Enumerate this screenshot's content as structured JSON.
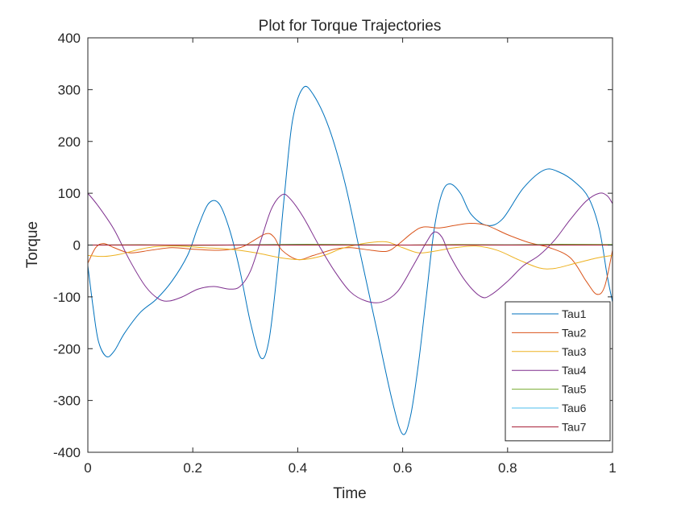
{
  "chart_data": {
    "type": "line",
    "title": "Plot for Torque Trajectories",
    "xlabel": "Time",
    "ylabel": "Torque",
    "xlim": [
      0,
      1
    ],
    "ylim": [
      -400,
      400
    ],
    "xticks": [
      0,
      0.2,
      0.4,
      0.6,
      0.8,
      1
    ],
    "xtick_labels": [
      "0",
      "0.2",
      "0.4",
      "0.6",
      "0.8",
      "1"
    ],
    "yticks": [
      -400,
      -300,
      -200,
      -100,
      0,
      100,
      200,
      300,
      400
    ],
    "ytick_labels": [
      "-400",
      "-300",
      "-200",
      "-100",
      "0",
      "100",
      "200",
      "300",
      "400"
    ],
    "grid": false,
    "legend_position": "bottom-right",
    "series": [
      {
        "name": "Tau1",
        "color": "#0072BD",
        "points": [
          [
            0,
            -40
          ],
          [
            0.01,
            -120
          ],
          [
            0.02,
            -185
          ],
          [
            0.035,
            -215
          ],
          [
            0.05,
            -205
          ],
          [
            0.07,
            -170
          ],
          [
            0.1,
            -130
          ],
          [
            0.13,
            -105
          ],
          [
            0.16,
            -70
          ],
          [
            0.19,
            -20
          ],
          [
            0.21,
            35
          ],
          [
            0.23,
            80
          ],
          [
            0.25,
            80
          ],
          [
            0.27,
            30
          ],
          [
            0.29,
            -50
          ],
          [
            0.31,
            -150
          ],
          [
            0.33,
            -218
          ],
          [
            0.345,
            -185
          ],
          [
            0.36,
            -60
          ],
          [
            0.375,
            100
          ],
          [
            0.39,
            240
          ],
          [
            0.41,
            303
          ],
          [
            0.43,
            290
          ],
          [
            0.46,
            225
          ],
          [
            0.49,
            120
          ],
          [
            0.52,
            -20
          ],
          [
            0.55,
            -160
          ],
          [
            0.58,
            -300
          ],
          [
            0.6,
            -365
          ],
          [
            0.615,
            -330
          ],
          [
            0.63,
            -230
          ],
          [
            0.645,
            -100
          ],
          [
            0.66,
            30
          ],
          [
            0.675,
            100
          ],
          [
            0.69,
            118
          ],
          [
            0.71,
            100
          ],
          [
            0.73,
            60
          ],
          [
            0.76,
            38
          ],
          [
            0.79,
            50
          ],
          [
            0.83,
            110
          ],
          [
            0.87,
            145
          ],
          [
            0.9,
            140
          ],
          [
            0.93,
            120
          ],
          [
            0.955,
            90
          ],
          [
            0.975,
            30
          ],
          [
            0.99,
            -60
          ],
          [
            1,
            -110
          ]
        ]
      },
      {
        "name": "Tau2",
        "color": "#D95319",
        "points": [
          [
            0,
            -35
          ],
          [
            0.015,
            -5
          ],
          [
            0.03,
            3
          ],
          [
            0.05,
            -5
          ],
          [
            0.08,
            -15
          ],
          [
            0.12,
            -10
          ],
          [
            0.16,
            -5
          ],
          [
            0.2,
            -8
          ],
          [
            0.25,
            -10
          ],
          [
            0.29,
            -5
          ],
          [
            0.31,
            5
          ],
          [
            0.34,
            22
          ],
          [
            0.355,
            15
          ],
          [
            0.37,
            -10
          ],
          [
            0.4,
            -28
          ],
          [
            0.43,
            -20
          ],
          [
            0.47,
            -8
          ],
          [
            0.5,
            -5
          ],
          [
            0.54,
            -10
          ],
          [
            0.57,
            -12
          ],
          [
            0.59,
            0
          ],
          [
            0.62,
            25
          ],
          [
            0.64,
            35
          ],
          [
            0.67,
            33
          ],
          [
            0.7,
            38
          ],
          [
            0.73,
            42
          ],
          [
            0.76,
            38
          ],
          [
            0.8,
            20
          ],
          [
            0.84,
            5
          ],
          [
            0.88,
            -5
          ],
          [
            0.92,
            -25
          ],
          [
            0.95,
            -70
          ],
          [
            0.97,
            -95
          ],
          [
            0.985,
            -80
          ],
          [
            1,
            -10
          ]
        ]
      },
      {
        "name": "Tau3",
        "color": "#EDB120",
        "points": [
          [
            0,
            -20
          ],
          [
            0.03,
            -22
          ],
          [
            0.06,
            -18
          ],
          [
            0.1,
            -8
          ],
          [
            0.13,
            -3
          ],
          [
            0.17,
            -2
          ],
          [
            0.22,
            -5
          ],
          [
            0.27,
            -8
          ],
          [
            0.32,
            -15
          ],
          [
            0.37,
            -25
          ],
          [
            0.41,
            -28
          ],
          [
            0.45,
            -20
          ],
          [
            0.48,
            -8
          ],
          [
            0.51,
            0
          ],
          [
            0.54,
            5
          ],
          [
            0.57,
            6
          ],
          [
            0.6,
            -5
          ],
          [
            0.63,
            -15
          ],
          [
            0.66,
            -12
          ],
          [
            0.7,
            -5
          ],
          [
            0.74,
            -2
          ],
          [
            0.78,
            -10
          ],
          [
            0.82,
            -28
          ],
          [
            0.86,
            -44
          ],
          [
            0.89,
            -45
          ],
          [
            0.93,
            -35
          ],
          [
            0.97,
            -25
          ],
          [
            1,
            -20
          ]
        ]
      },
      {
        "name": "Tau4",
        "color": "#7E2F8E",
        "points": [
          [
            0,
            100
          ],
          [
            0.02,
            75
          ],
          [
            0.05,
            30
          ],
          [
            0.08,
            -30
          ],
          [
            0.11,
            -80
          ],
          [
            0.135,
            -104
          ],
          [
            0.155,
            -108
          ],
          [
            0.18,
            -100
          ],
          [
            0.21,
            -85
          ],
          [
            0.24,
            -80
          ],
          [
            0.27,
            -85
          ],
          [
            0.29,
            -80
          ],
          [
            0.31,
            -50
          ],
          [
            0.33,
            10
          ],
          [
            0.35,
            70
          ],
          [
            0.37,
            97
          ],
          [
            0.385,
            90
          ],
          [
            0.41,
            55
          ],
          [
            0.44,
            0
          ],
          [
            0.47,
            -50
          ],
          [
            0.5,
            -90
          ],
          [
            0.53,
            -108
          ],
          [
            0.56,
            -110
          ],
          [
            0.59,
            -90
          ],
          [
            0.62,
            -40
          ],
          [
            0.645,
            5
          ],
          [
            0.66,
            25
          ],
          [
            0.675,
            15
          ],
          [
            0.69,
            -20
          ],
          [
            0.72,
            -70
          ],
          [
            0.75,
            -100
          ],
          [
            0.77,
            -95
          ],
          [
            0.8,
            -70
          ],
          [
            0.83,
            -40
          ],
          [
            0.86,
            -20
          ],
          [
            0.89,
            10
          ],
          [
            0.92,
            50
          ],
          [
            0.95,
            85
          ],
          [
            0.975,
            100
          ],
          [
            0.99,
            95
          ],
          [
            1,
            80
          ]
        ]
      },
      {
        "name": "Tau5",
        "color": "#77AC30",
        "points": [
          [
            0,
            0
          ],
          [
            0.1,
            0.5
          ],
          [
            0.2,
            -0.5
          ],
          [
            0.3,
            0.5
          ],
          [
            0.4,
            1.5
          ],
          [
            0.5,
            1
          ],
          [
            0.6,
            0
          ],
          [
            0.7,
            1
          ],
          [
            0.8,
            0.5
          ],
          [
            0.9,
            1.5
          ],
          [
            1,
            1
          ]
        ]
      },
      {
        "name": "Tau6",
        "color": "#4DBEEE",
        "points": [
          [
            0,
            0
          ],
          [
            0.2,
            0
          ],
          [
            0.4,
            0.3
          ],
          [
            0.6,
            0
          ],
          [
            0.8,
            0.2
          ],
          [
            1,
            0
          ]
        ]
      },
      {
        "name": "Tau7",
        "color": "#A2142F",
        "points": [
          [
            0,
            0
          ],
          [
            0.5,
            0
          ],
          [
            1,
            0
          ]
        ]
      }
    ]
  }
}
